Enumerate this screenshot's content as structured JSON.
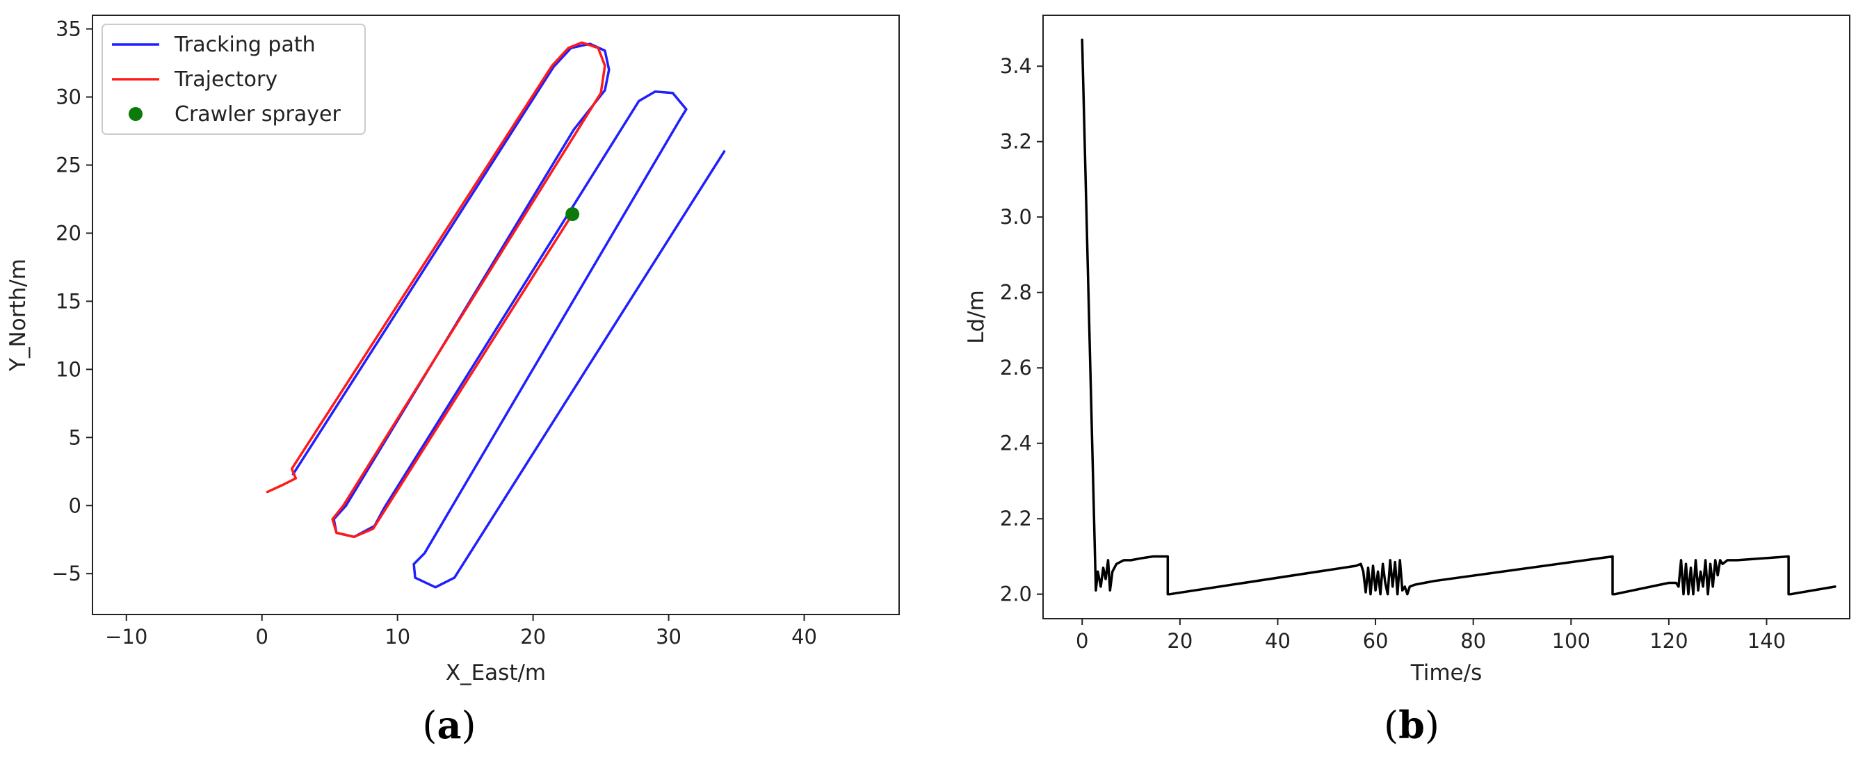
{
  "chart_data": [
    {
      "type": "line",
      "panel_label": "(a)",
      "panel_letter": "a",
      "xlabel": "X_East/m",
      "ylabel": "Y_North/m",
      "xlim": [
        -12.5,
        47
      ],
      "ylim": [
        -8,
        36
      ],
      "xticks": [
        -10,
        0,
        10,
        20,
        30,
        40
      ],
      "yticks": [
        -5,
        0,
        5,
        10,
        15,
        20,
        25,
        30,
        35
      ],
      "xtick_labels": [
        "−10",
        "0",
        "10",
        "20",
        "30",
        "40"
      ],
      "ytick_labels": [
        "−5",
        "0",
        "5",
        "10",
        "15",
        "20",
        "25",
        "30",
        "35"
      ],
      "legend_position": "top-left",
      "series": [
        {
          "name": "Tracking path",
          "color": "#1f1fff",
          "style": "line",
          "x": [
            2.3,
            21.5,
            22.8,
            24.2,
            25.3,
            25.6,
            25.3,
            23,
            6.2,
            5.3,
            5.5,
            6.8,
            8.3,
            9,
            27.8,
            29,
            30.3,
            31.3,
            30.8,
            12,
            11.2,
            11.3,
            12.8,
            14.2,
            34.1
          ],
          "y": [
            2.3,
            32.2,
            33.6,
            33.9,
            33.4,
            32,
            30.5,
            27.6,
            0,
            -1,
            -2,
            -2.3,
            -1.5,
            -0.2,
            29.7,
            30.4,
            30.3,
            29.1,
            28.3,
            -3.5,
            -4.3,
            -5.3,
            -6,
            -5.3,
            26
          ]
        },
        {
          "name": "Trajectory",
          "color": "#ff1a1a",
          "style": "line",
          "x": [
            0.4,
            1.5,
            2.5,
            2.2,
            21.4,
            22.6,
            23.6,
            24.8,
            25.3,
            25,
            6,
            5.2,
            5.5,
            6.8,
            8.2,
            22.9
          ],
          "y": [
            1,
            1.5,
            2,
            2.7,
            32.3,
            33.6,
            34,
            33.6,
            32.3,
            30.3,
            0,
            -1,
            -2,
            -2.3,
            -1.7,
            21.4
          ]
        },
        {
          "name": "Crawler sprayer",
          "color": "#0a7a0a",
          "style": "marker",
          "x": [
            22.9
          ],
          "y": [
            21.4
          ]
        }
      ]
    },
    {
      "type": "line",
      "panel_label": "(b)",
      "panel_letter": "b",
      "xlabel": "Time/s",
      "ylabel": "Ld/m",
      "xlim": [
        -8,
        157
      ],
      "ylim": [
        1.935,
        3.535
      ],
      "xticks": [
        0,
        20,
        40,
        60,
        80,
        100,
        120,
        140
      ],
      "yticks": [
        2.0,
        2.2,
        2.4,
        2.6,
        2.8,
        3.0,
        3.2,
        3.4
      ],
      "xtick_labels": [
        "0",
        "20",
        "40",
        "60",
        "80",
        "100",
        "120",
        "140"
      ],
      "ytick_labels": [
        "2.0",
        "2.2",
        "2.4",
        "2.6",
        "2.8",
        "3.0",
        "3.2",
        "3.4"
      ],
      "series": [
        {
          "color": "#000000",
          "style": "line",
          "x": [
            0,
            2.8,
            3.2,
            3.8,
            4.3,
            4.8,
            5.3,
            5.7,
            6.2,
            7,
            8.5,
            10,
            12,
            14.5,
            17.5,
            17.5,
            18,
            56,
            57,
            57.5,
            58,
            58.5,
            59,
            59.5,
            60,
            60.5,
            61,
            61.5,
            62,
            62.5,
            63,
            63.5,
            64,
            64.5,
            65,
            65.5,
            66,
            66.5,
            67,
            68,
            70,
            72,
            108.5,
            108.5,
            109,
            120,
            121.5,
            122,
            122.5,
            123,
            123.5,
            124,
            124.5,
            125,
            125.5,
            126,
            126.5,
            127,
            127.5,
            128,
            128.5,
            129,
            129.5,
            130,
            130.5,
            131,
            132,
            134,
            144.5,
            144.5,
            145,
            154
          ],
          "y": [
            3.47,
            2.01,
            2.06,
            2.02,
            2.07,
            2.04,
            2.09,
            2.01,
            2.06,
            2.08,
            2.09,
            2.09,
            2.095,
            2.1,
            2.1,
            2.0,
            2.0,
            2.075,
            2.08,
            2.06,
            2.005,
            2.07,
            2.0,
            2.075,
            2.01,
            2.06,
            2.0,
            2.08,
            2.03,
            2.0,
            2.09,
            2.02,
            2.085,
            2.0,
            2.09,
            2.01,
            2.02,
            2.0,
            2.02,
            2.025,
            2.03,
            2.035,
            2.1,
            2.0,
            2.0,
            2.03,
            2.03,
            2.02,
            2.09,
            2.0,
            2.08,
            2.0,
            2.07,
            2.0,
            2.09,
            2.01,
            2.06,
            2.02,
            2.09,
            2.0,
            2.08,
            2.02,
            2.09,
            2.05,
            2.09,
            2.08,
            2.09,
            2.09,
            2.1,
            2.0,
            2.0,
            2.02
          ]
        }
      ]
    }
  ]
}
